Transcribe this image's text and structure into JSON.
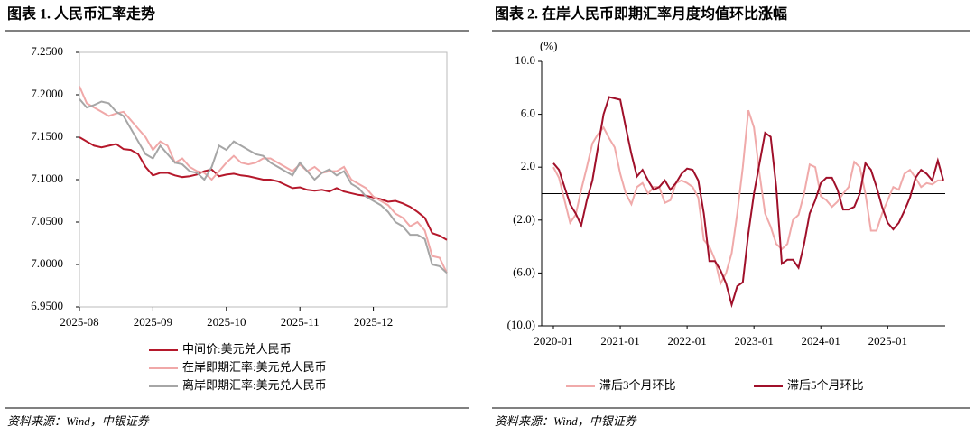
{
  "chart_data": [
    {
      "type": "line",
      "title": "图表 1. 人民币汇率走势",
      "source": "资料来源：Wind，中银证券",
      "categories": [
        "2025-08",
        null,
        null,
        null,
        null,
        null,
        null,
        null,
        null,
        null,
        "2025-09",
        null,
        null,
        null,
        null,
        null,
        null,
        null,
        null,
        null,
        "2025-10",
        null,
        null,
        null,
        null,
        null,
        null,
        null,
        null,
        null,
        "2025-11",
        null,
        null,
        null,
        null,
        null,
        null,
        null,
        null,
        null,
        "2025-12",
        null,
        null,
        null,
        null,
        null,
        null,
        null,
        null,
        null,
        null
      ],
      "ylim": [
        6.95,
        7.25
      ],
      "yticks": [
        {
          "value": 7.25,
          "label": "7.2500"
        },
        {
          "value": 7.2,
          "label": "7.2000"
        },
        {
          "value": 7.15,
          "label": "7.1500"
        },
        {
          "value": 7.1,
          "label": "7.1000"
        },
        {
          "value": 7.05,
          "label": "7.0500"
        },
        {
          "value": 7.0,
          "label": "7.0000"
        },
        {
          "value": 6.95,
          "label": "6.9500"
        }
      ],
      "series": [
        {
          "name": "中间价:美元兑人民币",
          "color": "#b5182b",
          "values": [
            7.15,
            7.145,
            7.14,
            7.138,
            7.14,
            7.142,
            7.136,
            7.135,
            7.13,
            7.115,
            7.105,
            7.108,
            7.108,
            7.105,
            7.103,
            7.104,
            7.106,
            7.11,
            7.112,
            7.104,
            7.106,
            7.107,
            7.105,
            7.104,
            7.102,
            7.1,
            7.1,
            7.098,
            7.094,
            7.09,
            7.091,
            7.088,
            7.087,
            7.088,
            7.086,
            7.09,
            7.086,
            7.084,
            7.082,
            7.081,
            7.079,
            7.077,
            7.074,
            7.075,
            7.072,
            7.068,
            7.062,
            7.055,
            7.037,
            7.034,
            7.029
          ]
        },
        {
          "name": "在岸即期汇率:美元兑人民币",
          "color": "#f0a8a8",
          "values": [
            7.21,
            7.19,
            7.185,
            7.18,
            7.175,
            7.178,
            7.18,
            7.17,
            7.16,
            7.15,
            7.135,
            7.145,
            7.14,
            7.12,
            7.125,
            7.115,
            7.11,
            7.108,
            7.1,
            7.11,
            7.12,
            7.128,
            7.12,
            7.118,
            7.12,
            7.125,
            7.125,
            7.12,
            7.115,
            7.11,
            7.118,
            7.11,
            7.115,
            7.108,
            7.11,
            7.11,
            7.115,
            7.1,
            7.095,
            7.09,
            7.08,
            7.075,
            7.07,
            7.06,
            7.055,
            7.045,
            7.05,
            7.04,
            7.01,
            7.008,
            6.99
          ]
        },
        {
          "name": "离岸即期汇率:美元兑人民币",
          "color": "#a6a6a6",
          "values": [
            7.195,
            7.185,
            7.188,
            7.192,
            7.19,
            7.18,
            7.175,
            7.16,
            7.145,
            7.13,
            7.125,
            7.14,
            7.13,
            7.12,
            7.118,
            7.11,
            7.108,
            7.1,
            7.115,
            7.14,
            7.135,
            7.145,
            7.14,
            7.135,
            7.13,
            7.128,
            7.12,
            7.115,
            7.11,
            7.105,
            7.12,
            7.11,
            7.1,
            7.108,
            7.112,
            7.105,
            7.11,
            7.095,
            7.09,
            7.08,
            7.075,
            7.07,
            7.062,
            7.05,
            7.045,
            7.035,
            7.035,
            7.03,
            7.0,
            6.998,
            6.99
          ]
        }
      ]
    },
    {
      "type": "line",
      "title": "图表 2. 在岸人民币即期汇率月度均值环比涨幅",
      "ylabel": "(%)",
      "source": "资料来源：Wind，中银证券",
      "categories": [
        "2020-01",
        null,
        null,
        null,
        null,
        null,
        null,
        null,
        null,
        null,
        null,
        null,
        "2021-01",
        null,
        null,
        null,
        null,
        null,
        null,
        null,
        null,
        null,
        null,
        null,
        "2022-01",
        null,
        null,
        null,
        null,
        null,
        null,
        null,
        null,
        null,
        null,
        null,
        "2023-01",
        null,
        null,
        null,
        null,
        null,
        null,
        null,
        null,
        null,
        null,
        null,
        "2024-01",
        null,
        null,
        null,
        null,
        null,
        null,
        null,
        null,
        null,
        null,
        null,
        "2025-01",
        null,
        null,
        null,
        null,
        null,
        null,
        null,
        null,
        null,
        null
      ],
      "ylim": [
        -10,
        10
      ],
      "yticks": [
        {
          "value": 10,
          "label": "10.0"
        },
        {
          "value": 6,
          "label": "6.0"
        },
        {
          "value": 2,
          "label": "2.0"
        },
        {
          "value": -2,
          "label": "(2.0)"
        },
        {
          "value": -6,
          "label": "(6.0)"
        },
        {
          "value": -10,
          "label": "(10.0)"
        }
      ],
      "negative_tick_color": "#e02020",
      "series": [
        {
          "name": "滞后3个月环比",
          "color": "#f0aaaa",
          "values": [
            2.0,
            1.2,
            -0.5,
            -2.2,
            -1.6,
            0.3,
            2.0,
            3.8,
            4.5,
            5.0,
            4.2,
            3.5,
            1.5,
            0.0,
            -0.8,
            0.5,
            0.8,
            0.0,
            0.5,
            0.5,
            -0.7,
            -0.5,
            0.8,
            1.0,
            0.8,
            0.5,
            -0.3,
            -3.5,
            -4.0,
            -5.0,
            -6.8,
            -6.0,
            -4.5,
            -1.5,
            2.0,
            6.3,
            5.0,
            1.5,
            -1.5,
            -2.5,
            -3.8,
            -4.2,
            -3.8,
            -2.0,
            -1.6,
            0.0,
            2.2,
            2.0,
            -0.2,
            -0.5,
            -1.0,
            -0.6,
            0.0,
            0.5,
            2.4,
            2.0,
            0.0,
            -2.8,
            -2.8,
            -1.5,
            -0.5,
            0.5,
            0.3,
            1.5,
            1.8,
            1.2,
            0.5,
            0.8,
            0.7,
            1.0,
            1.0
          ]
        },
        {
          "name": "滞后5个月环比",
          "color": "#a0102a",
          "values": [
            2.3,
            1.8,
            0.5,
            -0.8,
            -1.5,
            -2.4,
            -0.5,
            1.0,
            3.5,
            6.0,
            7.3,
            7.2,
            7.1,
            5.0,
            3.0,
            1.3,
            1.8,
            1.0,
            0.3,
            0.5,
            1.0,
            0.3,
            0.8,
            1.5,
            1.9,
            1.8,
            1.0,
            -1.5,
            -5.1,
            -5.1,
            -5.8,
            -6.8,
            -8.4,
            -7.0,
            -6.7,
            -3.0,
            0.0,
            2.3,
            4.6,
            4.3,
            0.5,
            -5.3,
            -5.0,
            -5.0,
            -5.6,
            -3.8,
            -1.5,
            -0.5,
            0.8,
            1.2,
            1.2,
            0.3,
            -1.2,
            -1.2,
            -1.0,
            0.0,
            2.3,
            1.8,
            0.5,
            -1.0,
            -2.2,
            -2.7,
            -2.2,
            -1.3,
            -0.3,
            1.2,
            1.8,
            1.5,
            1.0,
            2.5,
            1.0
          ]
        }
      ]
    }
  ]
}
